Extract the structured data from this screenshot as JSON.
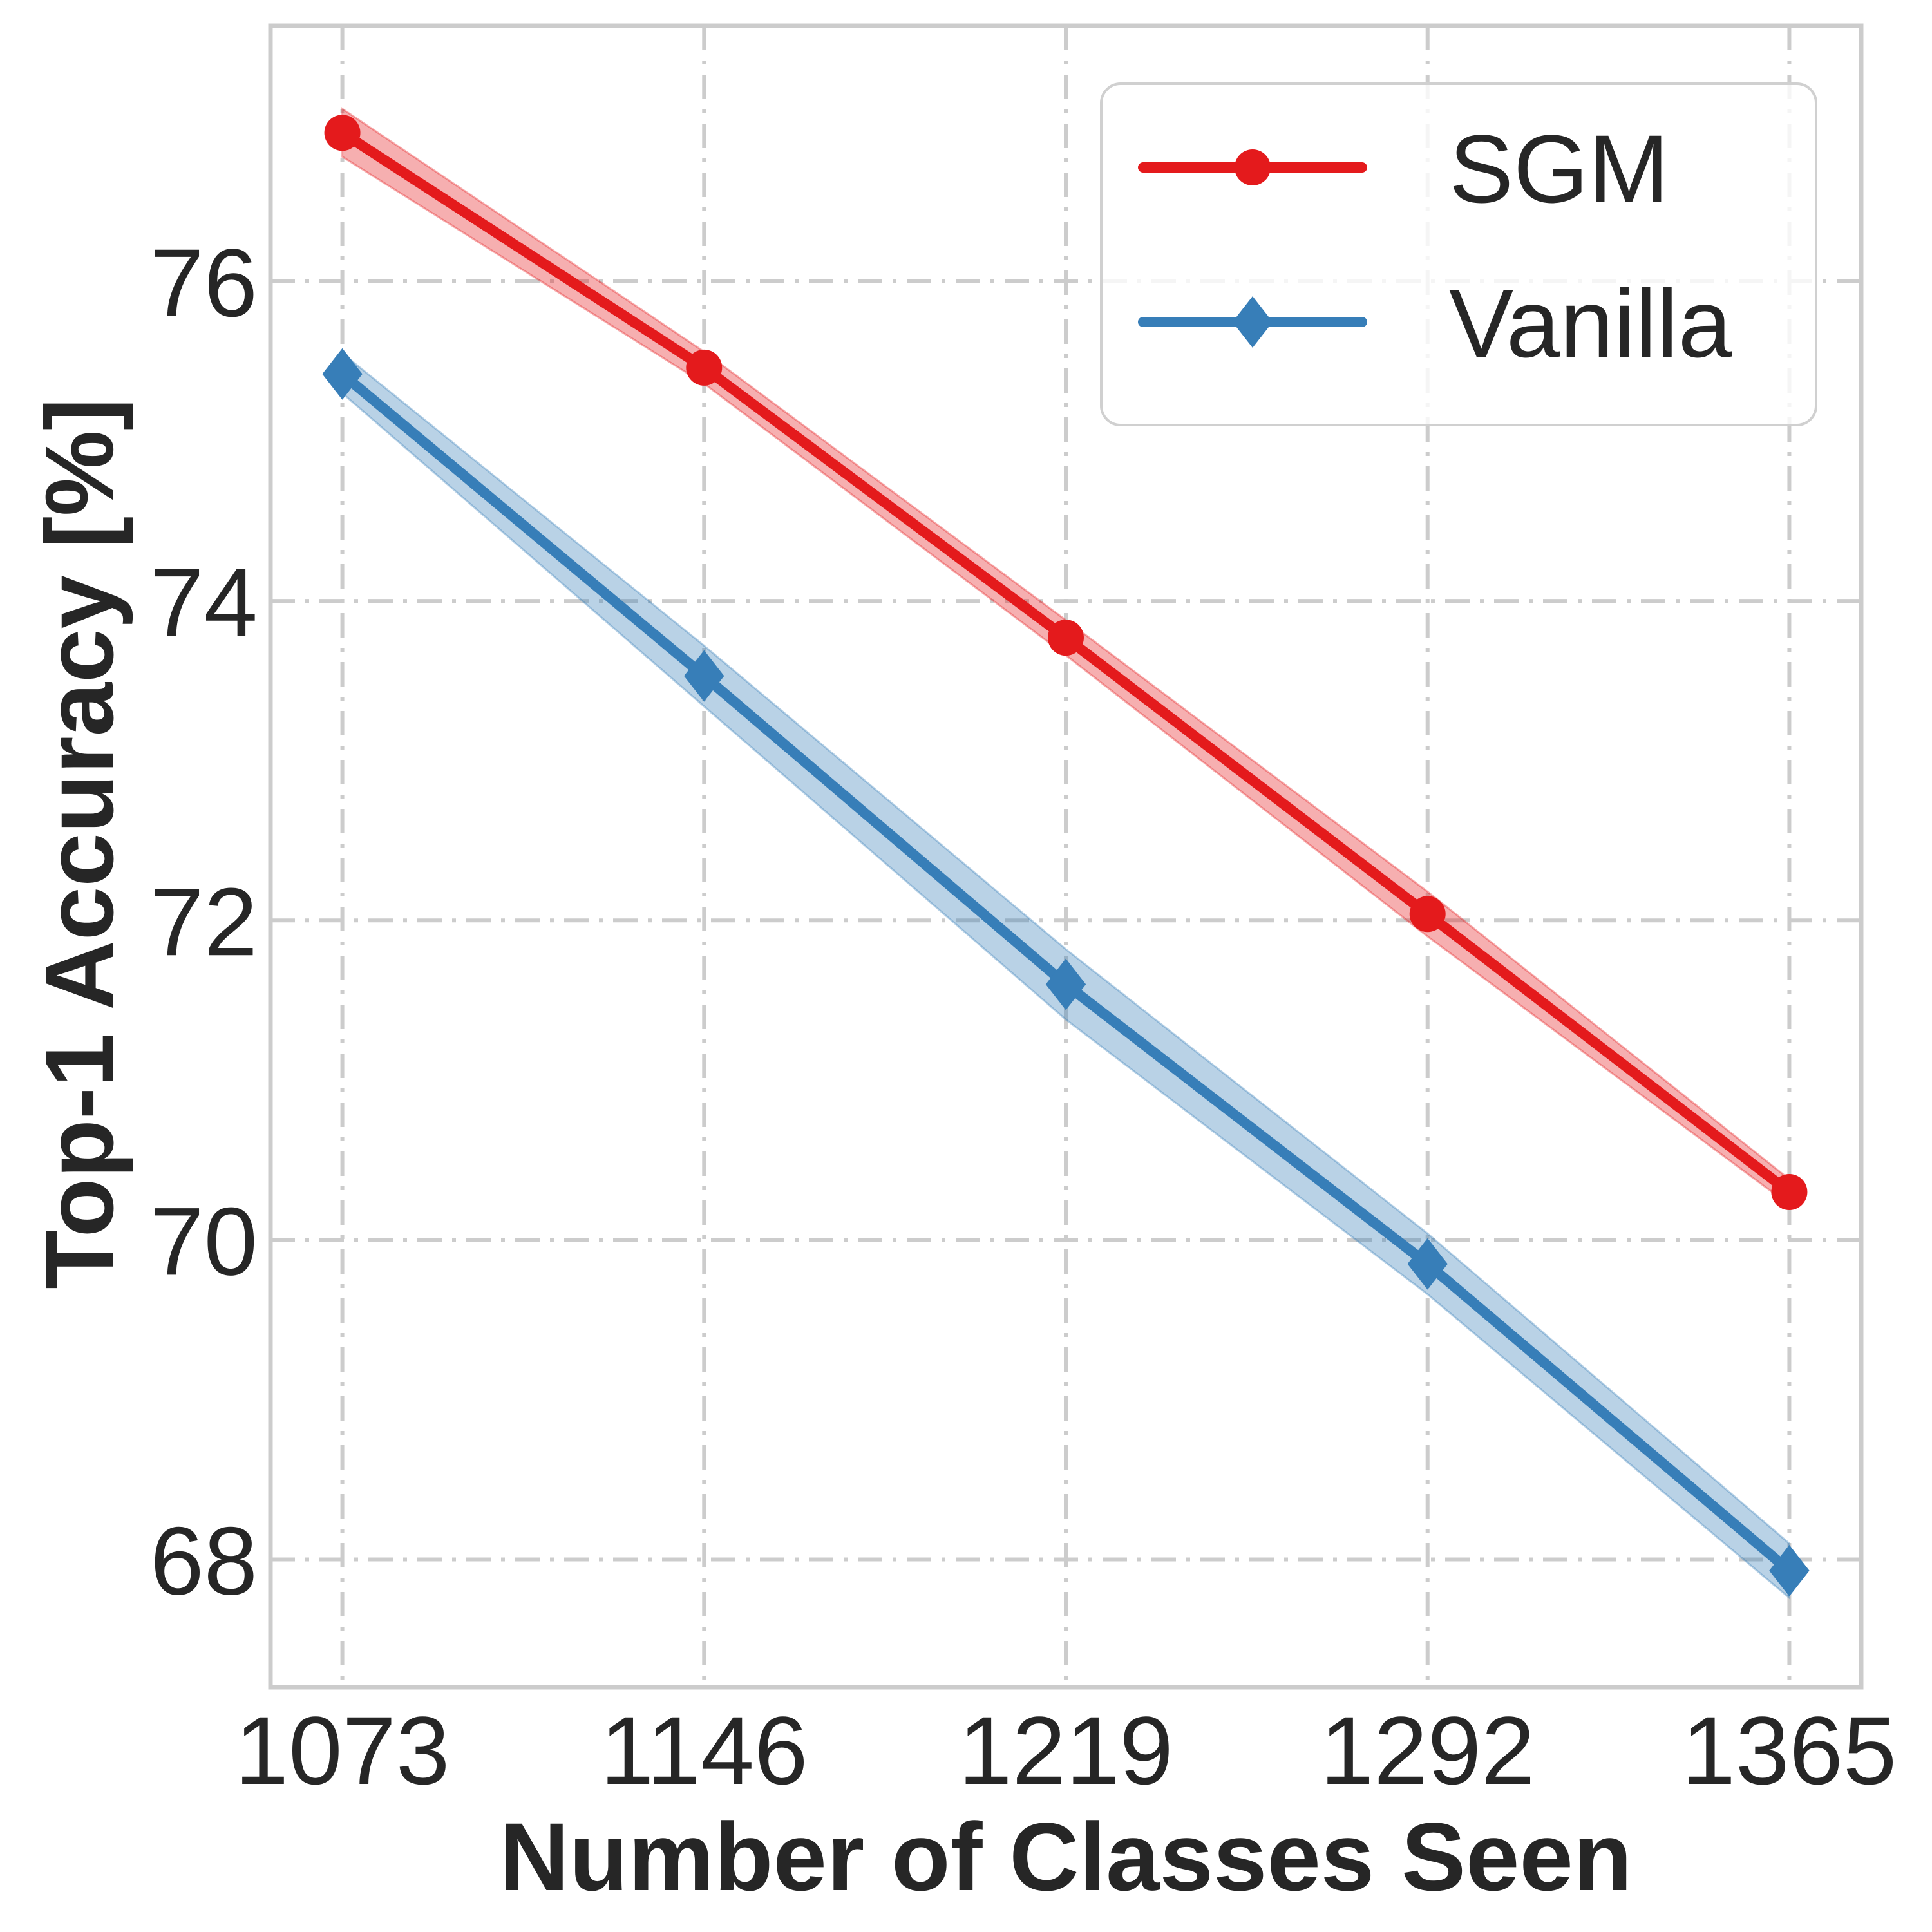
{
  "chart_data": {
    "type": "line",
    "x": [
      1073,
      1146,
      1219,
      1292,
      1365
    ],
    "xticks": [
      "1073",
      "1146",
      "1219",
      "1292",
      "1365"
    ],
    "yticks": [
      68,
      70,
      72,
      74,
      76
    ],
    "xlabel": "Number of Classes Seen",
    "ylabel": "Top-1 Accuracy [%]",
    "xlim": [
      1058.5,
      1379.5
    ],
    "ylim": [
      67.2,
      77.6
    ],
    "grid": true,
    "legend_position": "top-right",
    "series": [
      {
        "name": "SGM",
        "color": "#e41a1c",
        "marker": "circle",
        "values": [
          76.93,
          75.46,
          73.77,
          72.04,
          70.3
        ],
        "band_lower": [
          76.78,
          75.36,
          73.66,
          71.9,
          70.22
        ],
        "band_upper": [
          77.08,
          75.56,
          73.88,
          72.18,
          70.38
        ]
      },
      {
        "name": "Vanilla",
        "color": "#377eb8",
        "marker": "diamond",
        "values": [
          75.42,
          73.53,
          71.6,
          69.85,
          67.93
        ],
        "band_lower": [
          75.3,
          73.34,
          71.38,
          69.66,
          67.76
        ],
        "band_upper": [
          75.55,
          73.72,
          71.82,
          70.04,
          68.1
        ]
      }
    ]
  }
}
